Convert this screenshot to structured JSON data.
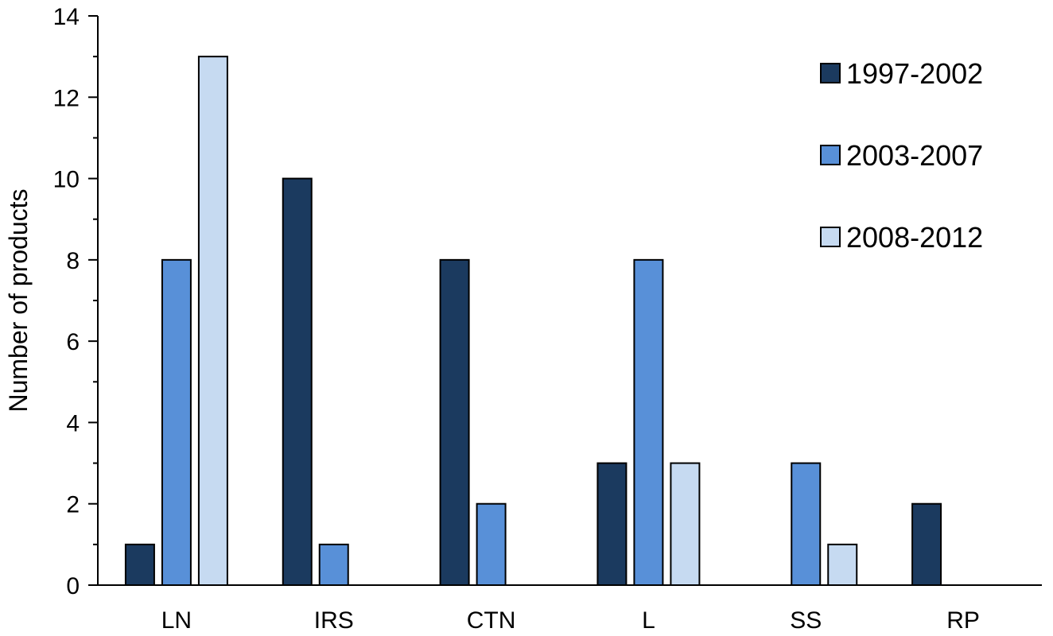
{
  "chart_data": {
    "type": "bar",
    "ylabel": "Number of products",
    "xlabel": "",
    "ylim": [
      0,
      14
    ],
    "yticks": [
      0,
      2,
      4,
      6,
      8,
      10,
      12,
      14
    ],
    "grid": false,
    "legend_position": "top-right",
    "categories": [
      "LN",
      "IRS",
      "CTN",
      "L",
      "SS",
      "RP"
    ],
    "series": [
      {
        "name": "1997-2002",
        "color": "#1b3a5f",
        "values": [
          1,
          10,
          8,
          3,
          0,
          2
        ]
      },
      {
        "name": "2003-2007",
        "color": "#5890d8",
        "values": [
          8,
          1,
          2,
          8,
          3,
          0
        ]
      },
      {
        "name": "2008-2012",
        "color": "#c6daf1",
        "values": [
          13,
          0,
          0,
          3,
          1,
          0
        ]
      }
    ]
  }
}
